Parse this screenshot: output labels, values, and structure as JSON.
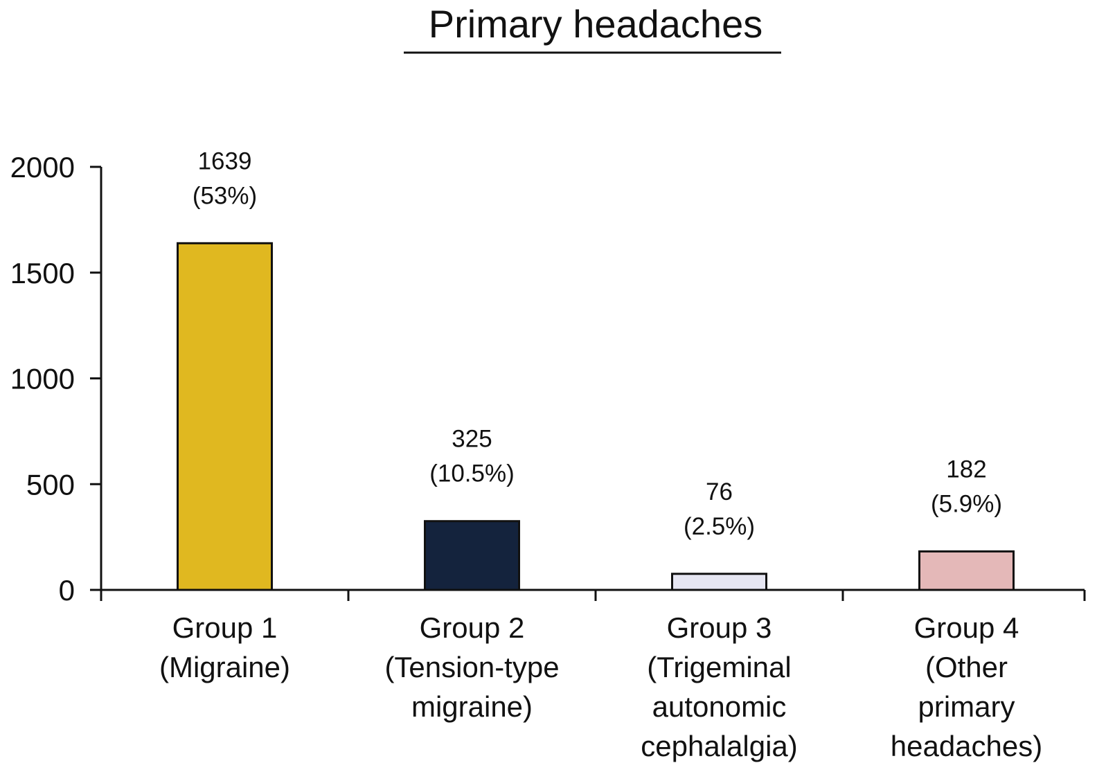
{
  "chart_data": {
    "type": "bar",
    "title": "Primary headaches",
    "xlabel": "",
    "ylabel": "",
    "ylim": [
      0,
      2000
    ],
    "yticks": [
      0,
      500,
      1000,
      1500,
      2000
    ],
    "grid": false,
    "legend": "none",
    "categories": [
      [
        "Group 1",
        "(Migraine)"
      ],
      [
        "Group 2",
        "(Tension-type",
        "migraine)"
      ],
      [
        "Group 3",
        "(Trigeminal",
        "autonomic",
        "cephalalgia)"
      ],
      [
        "Group 4",
        "(Other",
        "primary",
        "headaches)"
      ]
    ],
    "values": [
      1639,
      325,
      76,
      182
    ],
    "value_labels": [
      [
        "1639",
        "(53%)"
      ],
      [
        "325",
        "(10.5%)"
      ],
      [
        "76",
        "(2.5%)"
      ],
      [
        "182",
        "(5.9%)"
      ]
    ],
    "colors": [
      "#E0B820",
      "#14233D",
      "#E6E6F2",
      "#E4B8B8"
    ]
  }
}
